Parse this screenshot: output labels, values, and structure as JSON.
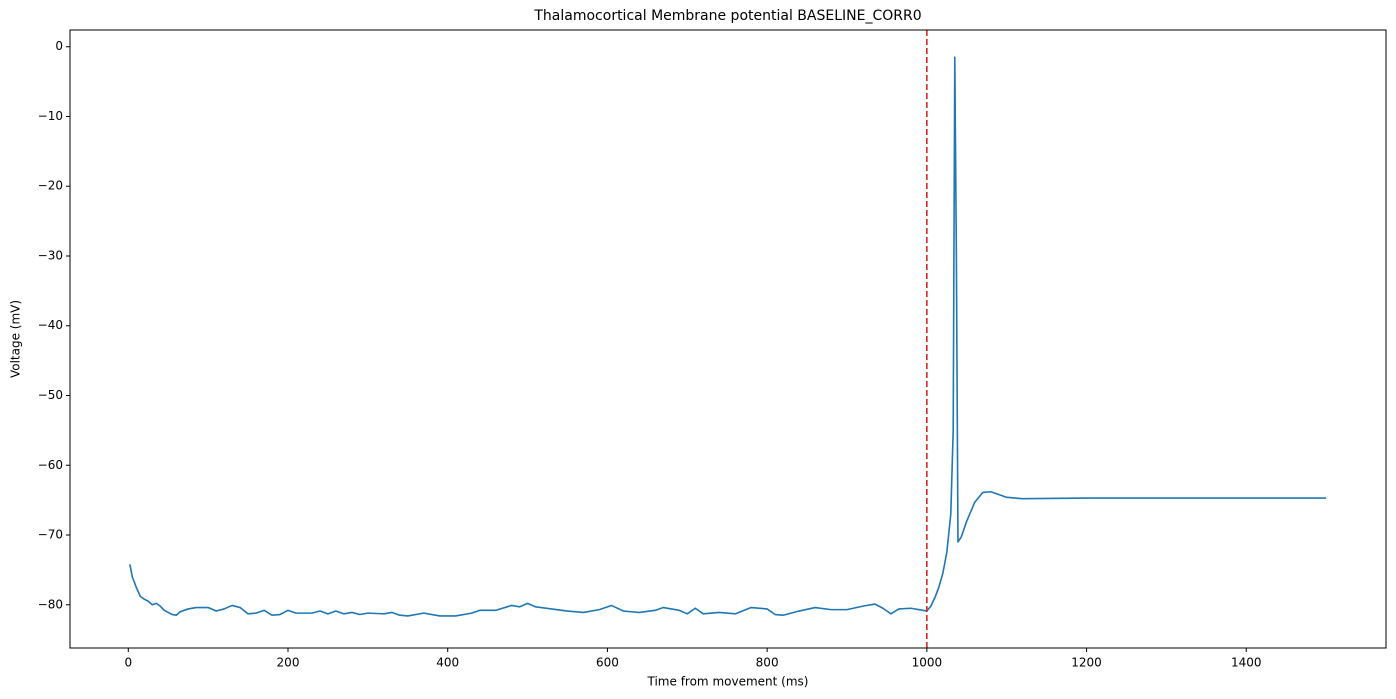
{
  "chart_data": {
    "type": "line",
    "title": "Thalamocortical Membrane potential  BASELINE_CORR0",
    "xlabel": "Time from movement (ms)",
    "ylabel": "Voltage (mV)",
    "xlim": [
      -73,
      1575
    ],
    "ylim": [
      -86.2,
      2.4
    ],
    "xticks": [
      0,
      200,
      400,
      600,
      800,
      1000,
      1200,
      1400
    ],
    "yticks": [
      {
        "value": -80,
        "label": "−80"
      },
      {
        "value": -70,
        "label": "−70"
      },
      {
        "value": -60,
        "label": "−60"
      },
      {
        "value": -50,
        "label": "−50"
      },
      {
        "value": -40,
        "label": "−40"
      },
      {
        "value": -30,
        "label": "−30"
      },
      {
        "value": -20,
        "label": "−20"
      },
      {
        "value": -10,
        "label": "−10"
      },
      0
    ],
    "vline": {
      "x": 1000,
      "color": "#d62728"
    },
    "series": [
      {
        "color": "#1f77b4",
        "x": [
          2,
          5,
          10,
          15,
          20,
          25,
          30,
          35,
          40,
          45,
          50,
          55,
          60,
          65,
          75,
          85,
          100,
          110,
          120,
          130,
          140,
          150,
          160,
          170,
          180,
          190,
          200,
          210,
          230,
          240,
          250,
          260,
          270,
          280,
          290,
          300,
          320,
          330,
          340,
          350,
          370,
          390,
          410,
          430,
          440,
          460,
          480,
          490,
          500,
          510,
          530,
          550,
          570,
          590,
          605,
          620,
          640,
          660,
          670,
          690,
          700,
          710,
          720,
          740,
          760,
          780,
          800,
          810,
          820,
          840,
          860,
          880,
          900,
          920,
          935,
          945,
          955,
          965,
          980,
          995,
          1000,
          1005,
          1010,
          1015,
          1020,
          1025,
          1030,
          1033,
          1035,
          1037,
          1039,
          1043,
          1050,
          1060,
          1070,
          1080,
          1090,
          1100,
          1120,
          1200,
          1500
        ],
        "values": [
          -74.2,
          -76,
          -77.5,
          -78.8,
          -79.2,
          -79.5,
          -80,
          -79.8,
          -80.2,
          -80.8,
          -81.1,
          -81.4,
          -81.5,
          -81,
          -80.6,
          -80.4,
          -80.4,
          -80.9,
          -80.6,
          -80.1,
          -80.4,
          -81.3,
          -81.2,
          -80.8,
          -81.5,
          -81.4,
          -80.8,
          -81.2,
          -81.2,
          -80.9,
          -81.3,
          -80.9,
          -81.3,
          -81.1,
          -81.4,
          -81.2,
          -81.3,
          -81.1,
          -81.5,
          -81.6,
          -81.2,
          -81.6,
          -81.6,
          -81.2,
          -80.8,
          -80.8,
          -80.1,
          -80.3,
          -79.8,
          -80.3,
          -80.6,
          -80.9,
          -81.1,
          -80.7,
          -80.1,
          -80.9,
          -81.1,
          -80.8,
          -80.4,
          -80.8,
          -81.3,
          -80.5,
          -81.3,
          -81.1,
          -81.3,
          -80.4,
          -80.6,
          -81.4,
          -81.5,
          -80.9,
          -80.4,
          -80.7,
          -80.7,
          -80.2,
          -79.9,
          -80.5,
          -81.3,
          -80.6,
          -80.5,
          -80.8,
          -80.9,
          -80.2,
          -79,
          -77.5,
          -75.5,
          -72.5,
          -67,
          -55,
          -1.5,
          -30,
          -71,
          -70.3,
          -68,
          -65.3,
          -63.9,
          -63.8,
          -64.2,
          -64.6,
          -64.8,
          -64.7,
          -64.7
        ]
      }
    ]
  }
}
